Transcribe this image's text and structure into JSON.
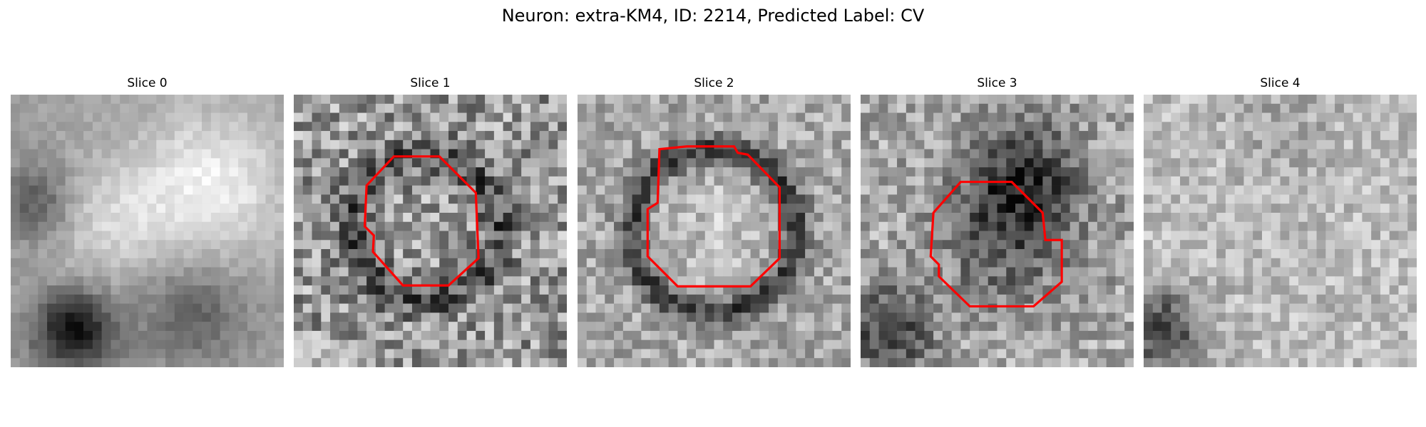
{
  "figure": {
    "title": "Neuron: extra-KM4, ID: 2214, Predicted Label: CV"
  },
  "panels": [
    {
      "title": "Slice 0"
    },
    {
      "title": "Slice 1"
    },
    {
      "title": "Slice 2"
    },
    {
      "title": "Slice 3"
    },
    {
      "title": "Slice 4"
    }
  ],
  "colors": {
    "contour": "#ff0000",
    "colormap": "grayscale"
  }
}
